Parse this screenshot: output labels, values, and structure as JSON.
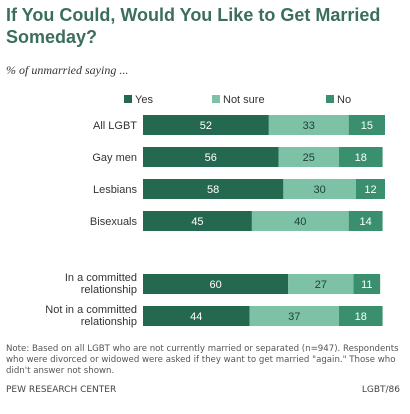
{
  "header": {
    "title": "If You Could, Would You Like to Get Married Someday?",
    "subtitle": "% of unmarried saying ..."
  },
  "colors": {
    "yes": "#24694f",
    "not_sure": "#7dc1a7",
    "no": "#3a8f6f",
    "title": "#3b6e5e"
  },
  "chart_data": {
    "type": "bar",
    "orientation": "horizontal",
    "stacked": true,
    "legend_position": "top",
    "categories": [
      "All LGBT",
      "Gay men",
      "Lesbians",
      "Bisexuals",
      "In a committed relationship",
      "Not in a committed relationship"
    ],
    "category_lines": [
      [
        "All LGBT"
      ],
      [
        "Gay men"
      ],
      [
        "Lesbians"
      ],
      [
        "Bisexuals"
      ],
      [
        "In a committed",
        "relationship"
      ],
      [
        "Not in a committed",
        "relationship"
      ]
    ],
    "series": [
      {
        "name": "Yes",
        "values": [
          52,
          56,
          58,
          45,
          60,
          44
        ]
      },
      {
        "name": "Not sure",
        "values": [
          33,
          25,
          30,
          40,
          27,
          37
        ]
      },
      {
        "name": "No",
        "values": [
          15,
          18,
          12,
          14,
          11,
          18
        ]
      }
    ]
  },
  "footer": {
    "note": "Note: Based on all LGBT who are not currently married or separated (n=947). Respondents who were divorced or widowed were asked if they want to get married \"again.\" Those who didn't answer not shown.",
    "source": "PEW RESEARCH CENTER",
    "code": "LGBT/86"
  }
}
